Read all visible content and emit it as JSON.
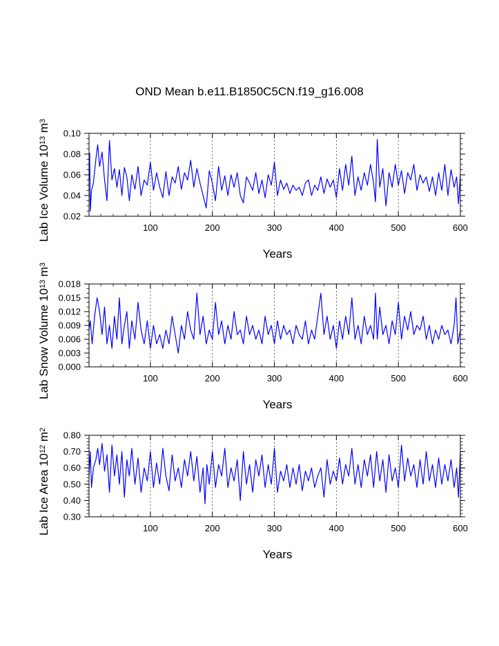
{
  "figure_title": "OND Mean b.e11.B1850C5CN.f19_g16.008",
  "chart_data": [
    {
      "type": "line",
      "id": "ice-volume",
      "title": "",
      "xlabel": "Years",
      "ylabel": "Lab Ice Volume 10",
      "ylabel_exp": "13",
      "ylabel_unit": " m",
      "ylabel_unit_exp": "3",
      "xlim": [
        1,
        600
      ],
      "ylim": [
        0.02,
        0.1
      ],
      "xticks": [
        100,
        200,
        300,
        400,
        500,
        600
      ],
      "yticks": [
        0.02,
        0.04,
        0.06,
        0.08,
        0.1
      ],
      "ytick_labels": [
        "0.02",
        "0.04",
        "0.06",
        "0.08",
        "0.10"
      ],
      "yminor_step": 0.005,
      "grid": "dashed vertical lines at x ticks",
      "color": "#0000ff",
      "series": [
        {
          "name": "Lab Ice Volume",
          "x": [
            1,
            2,
            3,
            5,
            8,
            12,
            15,
            18,
            22,
            26,
            30,
            34,
            38,
            42,
            46,
            50,
            54,
            58,
            62,
            66,
            70,
            75,
            80,
            85,
            90,
            95,
            100,
            105,
            110,
            115,
            120,
            125,
            130,
            135,
            140,
            145,
            150,
            155,
            160,
            165,
            170,
            175,
            180,
            185,
            190,
            195,
            200,
            205,
            210,
            215,
            220,
            225,
            230,
            235,
            240,
            245,
            250,
            255,
            260,
            265,
            270,
            275,
            280,
            285,
            290,
            295,
            300,
            305,
            310,
            315,
            320,
            325,
            330,
            335,
            340,
            345,
            350,
            355,
            360,
            365,
            370,
            375,
            380,
            385,
            390,
            395,
            400,
            405,
            410,
            415,
            420,
            425,
            430,
            435,
            440,
            445,
            450,
            455,
            460,
            463,
            466,
            470,
            475,
            480,
            485,
            490,
            495,
            500,
            505,
            510,
            515,
            520,
            525,
            530,
            535,
            540,
            545,
            550,
            555,
            560,
            565,
            570,
            575,
            580,
            585,
            590,
            594,
            597,
            600
          ],
          "y": [
            0.055,
            0.081,
            0.025,
            0.045,
            0.052,
            0.075,
            0.089,
            0.068,
            0.082,
            0.055,
            0.035,
            0.093,
            0.055,
            0.066,
            0.048,
            0.065,
            0.04,
            0.067,
            0.058,
            0.035,
            0.06,
            0.046,
            0.068,
            0.04,
            0.055,
            0.05,
            0.072,
            0.045,
            0.062,
            0.048,
            0.038,
            0.063,
            0.04,
            0.058,
            0.052,
            0.068,
            0.046,
            0.062,
            0.055,
            0.074,
            0.048,
            0.066,
            0.052,
            0.04,
            0.028,
            0.064,
            0.052,
            0.035,
            0.068,
            0.045,
            0.059,
            0.04,
            0.06,
            0.048,
            0.062,
            0.04,
            0.033,
            0.058,
            0.052,
            0.045,
            0.062,
            0.042,
            0.055,
            0.038,
            0.06,
            0.05,
            0.072,
            0.04,
            0.055,
            0.046,
            0.052,
            0.042,
            0.05,
            0.045,
            0.048,
            0.04,
            0.052,
            0.055,
            0.04,
            0.05,
            0.045,
            0.058,
            0.042,
            0.056,
            0.048,
            0.055,
            0.038,
            0.066,
            0.045,
            0.07,
            0.05,
            0.078,
            0.04,
            0.058,
            0.045,
            0.062,
            0.05,
            0.07,
            0.052,
            0.034,
            0.094,
            0.048,
            0.066,
            0.03,
            0.062,
            0.048,
            0.07,
            0.05,
            0.064,
            0.042,
            0.062,
            0.055,
            0.07,
            0.045,
            0.06,
            0.052,
            0.058,
            0.044,
            0.058,
            0.04,
            0.062,
            0.045,
            0.07,
            0.04,
            0.065,
            0.048,
            0.058,
            0.032,
            0.06
          ]
        }
      ]
    },
    {
      "type": "line",
      "id": "snow-volume",
      "title": "",
      "xlabel": "Years",
      "ylabel": "Lab Snow Volume 10",
      "ylabel_exp": "13",
      "ylabel_unit": " m",
      "ylabel_unit_exp": "3",
      "xlim": [
        1,
        600
      ],
      "ylim": [
        0.0,
        0.018
      ],
      "xticks": [
        100,
        200,
        300,
        400,
        500,
        600
      ],
      "yticks": [
        0.0,
        0.003,
        0.006,
        0.009,
        0.012,
        0.015,
        0.018
      ],
      "ytick_labels": [
        "0.000",
        "0.003",
        "0.006",
        "0.009",
        "0.012",
        "0.015",
        "0.018"
      ],
      "yminor_step": 0.001,
      "grid": "dashed vertical lines at x ticks",
      "color": "#0000ff",
      "series": [
        {
          "name": "Lab Snow Volume",
          "x": [
            1,
            3,
            6,
            10,
            14,
            18,
            22,
            26,
            30,
            34,
            38,
            42,
            46,
            50,
            54,
            58,
            62,
            66,
            70,
            75,
            80,
            85,
            90,
            95,
            100,
            105,
            110,
            115,
            120,
            125,
            130,
            135,
            140,
            145,
            150,
            155,
            160,
            165,
            170,
            175,
            180,
            185,
            190,
            195,
            200,
            205,
            210,
            215,
            220,
            225,
            230,
            235,
            240,
            245,
            250,
            255,
            260,
            265,
            270,
            275,
            280,
            285,
            290,
            295,
            300,
            305,
            310,
            315,
            320,
            325,
            330,
            335,
            340,
            345,
            350,
            355,
            360,
            365,
            370,
            375,
            380,
            385,
            390,
            395,
            400,
            405,
            410,
            415,
            420,
            425,
            430,
            435,
            440,
            445,
            450,
            455,
            460,
            463,
            466,
            470,
            475,
            480,
            485,
            490,
            495,
            500,
            505,
            510,
            515,
            520,
            525,
            530,
            535,
            540,
            545,
            550,
            555,
            560,
            565,
            570,
            575,
            580,
            585,
            590,
            593,
            596,
            600
          ],
          "y": [
            0.008,
            0.01,
            0.005,
            0.011,
            0.015,
            0.012,
            0.007,
            0.013,
            0.005,
            0.009,
            0.004,
            0.011,
            0.006,
            0.015,
            0.005,
            0.009,
            0.012,
            0.004,
            0.01,
            0.006,
            0.014,
            0.008,
            0.005,
            0.01,
            0.004,
            0.009,
            0.005,
            0.007,
            0.004,
            0.008,
            0.005,
            0.011,
            0.007,
            0.003,
            0.009,
            0.006,
            0.012,
            0.008,
            0.006,
            0.016,
            0.007,
            0.011,
            0.005,
            0.008,
            0.006,
            0.014,
            0.007,
            0.01,
            0.005,
            0.009,
            0.006,
            0.012,
            0.007,
            0.008,
            0.005,
            0.011,
            0.007,
            0.009,
            0.006,
            0.008,
            0.005,
            0.011,
            0.007,
            0.009,
            0.005,
            0.01,
            0.006,
            0.009,
            0.007,
            0.008,
            0.005,
            0.009,
            0.007,
            0.006,
            0.01,
            0.005,
            0.008,
            0.006,
            0.011,
            0.016,
            0.007,
            0.011,
            0.006,
            0.009,
            0.004,
            0.01,
            0.006,
            0.011,
            0.007,
            0.015,
            0.006,
            0.009,
            0.005,
            0.011,
            0.007,
            0.009,
            0.006,
            0.016,
            0.006,
            0.013,
            0.007,
            0.009,
            0.005,
            0.01,
            0.007,
            0.014,
            0.006,
            0.011,
            0.008,
            0.012,
            0.007,
            0.009,
            0.008,
            0.011,
            0.006,
            0.009,
            0.005,
            0.008,
            0.006,
            0.009,
            0.007,
            0.008,
            0.005,
            0.009,
            0.015,
            0.005,
            0.008
          ]
        }
      ]
    },
    {
      "type": "line",
      "id": "ice-area",
      "title": "",
      "xlabel": "Years",
      "ylabel": "Lab Ice Area 10",
      "ylabel_exp": "12",
      "ylabel_unit": " m",
      "ylabel_unit_exp": "2",
      "xlim": [
        1,
        600
      ],
      "ylim": [
        0.3,
        0.8
      ],
      "xticks": [
        100,
        200,
        300,
        400,
        500,
        600
      ],
      "yticks": [
        0.3,
        0.4,
        0.5,
        0.6,
        0.7,
        0.8
      ],
      "ytick_labels": [
        "0.30",
        "0.40",
        "0.50",
        "0.60",
        "0.70",
        "0.80"
      ],
      "yminor_step": 0.02,
      "grid": "dashed vertical lines at x ticks",
      "color": "#0000ff",
      "series": [
        {
          "name": "Lab Ice Area",
          "x": [
            1,
            3,
            5,
            8,
            12,
            15,
            18,
            22,
            26,
            30,
            34,
            38,
            42,
            46,
            50,
            54,
            58,
            62,
            66,
            70,
            75,
            80,
            85,
            90,
            95,
            100,
            105,
            110,
            115,
            120,
            125,
            130,
            135,
            140,
            145,
            150,
            155,
            160,
            165,
            170,
            175,
            180,
            185,
            188,
            191,
            195,
            200,
            205,
            210,
            215,
            220,
            225,
            230,
            235,
            240,
            245,
            250,
            255,
            260,
            265,
            270,
            275,
            280,
            285,
            290,
            295,
            300,
            305,
            310,
            315,
            320,
            325,
            330,
            335,
            340,
            345,
            350,
            355,
            360,
            365,
            370,
            375,
            380,
            385,
            390,
            395,
            400,
            405,
            410,
            415,
            420,
            425,
            430,
            435,
            440,
            445,
            450,
            455,
            460,
            465,
            470,
            475,
            480,
            485,
            490,
            495,
            500,
            505,
            510,
            515,
            520,
            525,
            530,
            535,
            540,
            545,
            550,
            555,
            560,
            565,
            570,
            575,
            580,
            585,
            590,
            594,
            597,
            600
          ],
          "y": [
            0.55,
            0.7,
            0.48,
            0.6,
            0.65,
            0.72,
            0.62,
            0.75,
            0.58,
            0.68,
            0.45,
            0.74,
            0.55,
            0.68,
            0.5,
            0.7,
            0.42,
            0.65,
            0.55,
            0.72,
            0.5,
            0.66,
            0.45,
            0.6,
            0.52,
            0.7,
            0.48,
            0.63,
            0.5,
            0.72,
            0.55,
            0.46,
            0.68,
            0.52,
            0.6,
            0.48,
            0.65,
            0.55,
            0.7,
            0.52,
            0.67,
            0.45,
            0.6,
            0.38,
            0.62,
            0.5,
            0.7,
            0.48,
            0.62,
            0.55,
            0.72,
            0.48,
            0.6,
            0.52,
            0.65,
            0.4,
            0.7,
            0.5,
            0.62,
            0.45,
            0.65,
            0.55,
            0.68,
            0.48,
            0.62,
            0.5,
            0.72,
            0.45,
            0.58,
            0.52,
            0.62,
            0.48,
            0.6,
            0.5,
            0.62,
            0.46,
            0.58,
            0.52,
            0.6,
            0.48,
            0.55,
            0.6,
            0.42,
            0.65,
            0.5,
            0.58,
            0.52,
            0.66,
            0.5,
            0.62,
            0.55,
            0.72,
            0.5,
            0.62,
            0.48,
            0.65,
            0.55,
            0.68,
            0.48,
            0.7,
            0.52,
            0.65,
            0.45,
            0.68,
            0.52,
            0.6,
            0.48,
            0.74,
            0.52,
            0.66,
            0.55,
            0.62,
            0.48,
            0.65,
            0.5,
            0.7,
            0.52,
            0.62,
            0.48,
            0.66,
            0.5,
            0.62,
            0.52,
            0.65,
            0.48,
            0.6,
            0.42,
            0.7
          ]
        }
      ]
    }
  ]
}
